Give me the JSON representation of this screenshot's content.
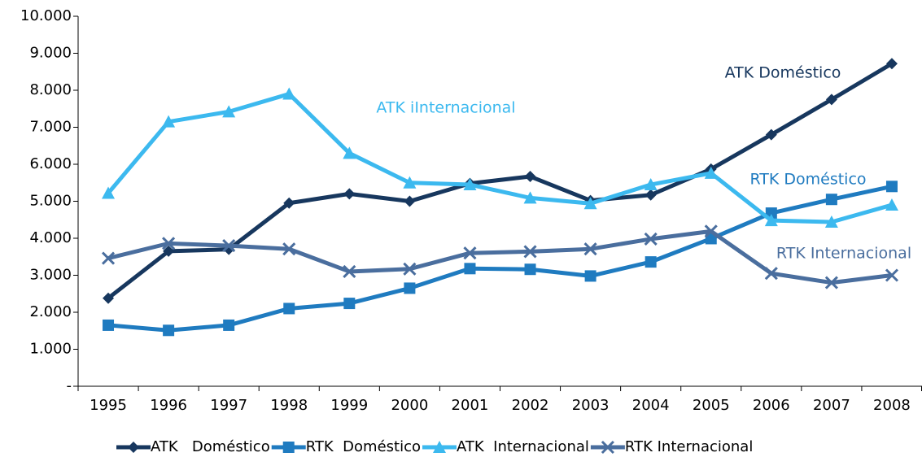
{
  "chart_data": {
    "type": "line",
    "categories": [
      "1995",
      "1996",
      "1997",
      "1998",
      "1999",
      "2000",
      "2001",
      "2002",
      "2003",
      "2004",
      "2005",
      "2006",
      "2007",
      "2008"
    ],
    "series": [
      {
        "name": "ATK   Doméstico",
        "color": "#17375e",
        "marker": "diamond",
        "values": [
          2380,
          3650,
          3700,
          4950,
          5200,
          5000,
          5480,
          5670,
          5020,
          5170,
          5870,
          6800,
          7750,
          8720
        ]
      },
      {
        "name": "RTK  Doméstico",
        "color": "#1f7bc0",
        "marker": "square",
        "values": [
          1650,
          1510,
          1650,
          2100,
          2240,
          2650,
          3180,
          3160,
          2980,
          3360,
          3990,
          4680,
          5050,
          5400
        ]
      },
      {
        "name": "ATK  Internacional",
        "color": "#3cb9ef",
        "marker": "triangle",
        "values": [
          5220,
          7150,
          7420,
          7900,
          6300,
          5500,
          5450,
          5090,
          4940,
          5450,
          5760,
          4480,
          4440,
          4900
        ]
      },
      {
        "name": "RTK Internacional",
        "color": "#4a6e9e",
        "marker": "x",
        "values": [
          3460,
          3860,
          3800,
          3710,
          3100,
          3170,
          3600,
          3640,
          3710,
          3980,
          4190,
          3050,
          2800,
          3000
        ]
      }
    ],
    "annotations": [
      "ATK Doméstico",
      "ATK iInternacional",
      "RTK Doméstico",
      "RTK Internacional"
    ],
    "ylim": [
      0,
      10000
    ],
    "yticks": [
      {
        "value": 0,
        "label": "-"
      },
      {
        "value": 1000,
        "label": "1.000"
      },
      {
        "value": 2000,
        "label": "2.000"
      },
      {
        "value": 3000,
        "label": "3.000"
      },
      {
        "value": 4000,
        "label": "4.000"
      },
      {
        "value": 5000,
        "label": "5.000"
      },
      {
        "value": 6000,
        "label": "6.000"
      },
      {
        "value": 7000,
        "label": "7.000"
      },
      {
        "value": 8000,
        "label": "8.000"
      },
      {
        "value": 9000,
        "label": "9.000"
      },
      {
        "value": 10000,
        "label": "10.000"
      }
    ],
    "grid": false
  }
}
